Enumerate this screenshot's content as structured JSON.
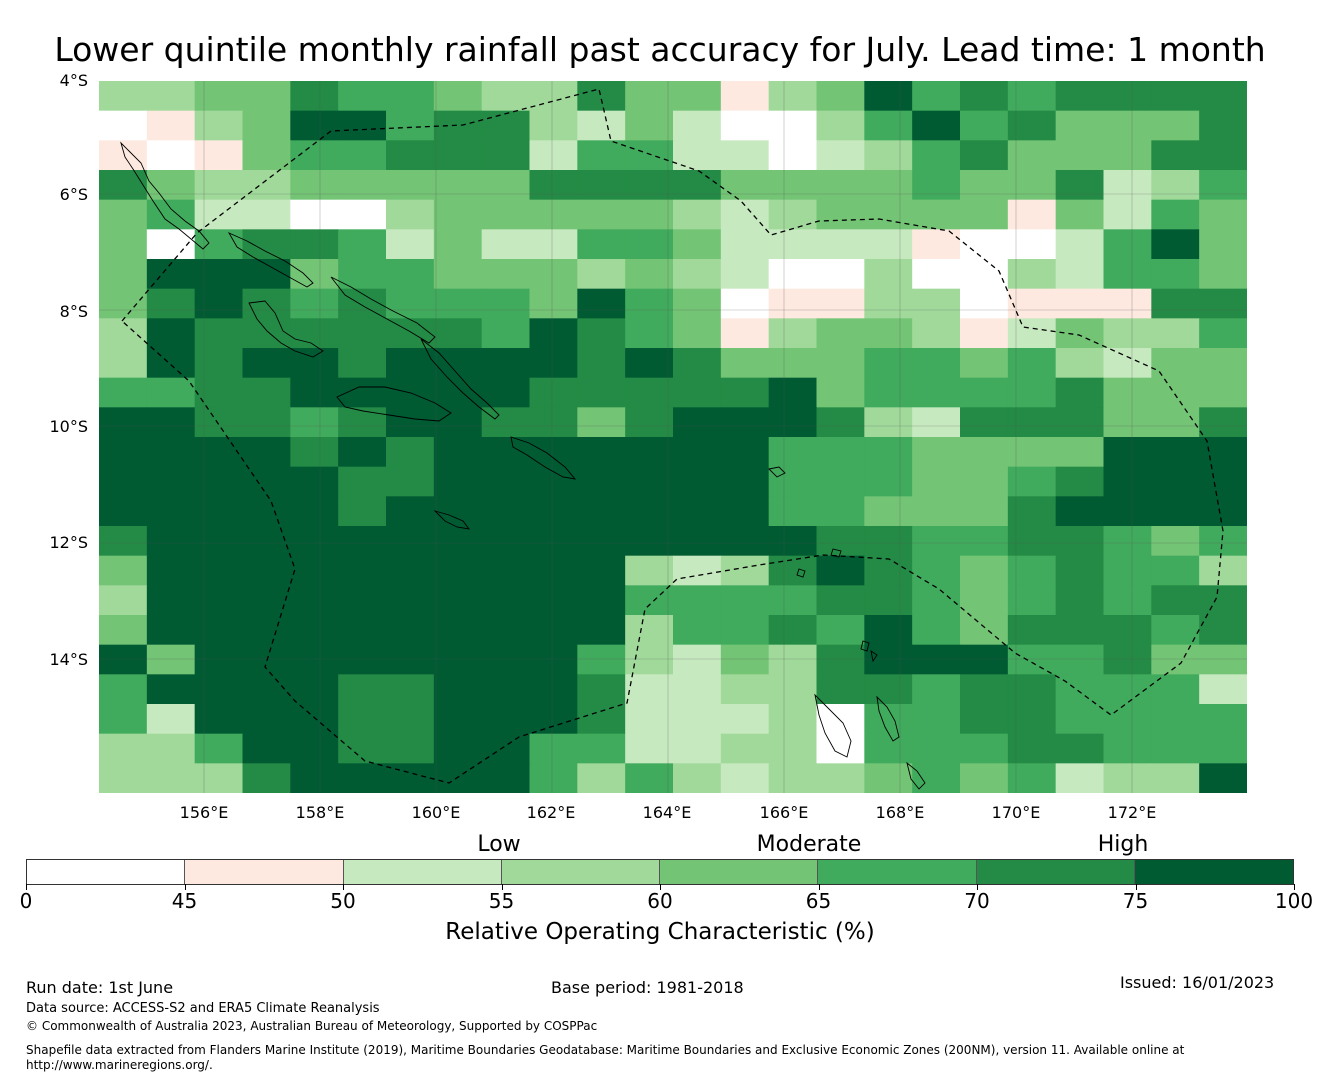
{
  "title": "Lower quintile monthly rainfall past accuracy for July. Lead time: 1 month",
  "map": {
    "lat_labels": [
      "4°S",
      "6°S",
      "8°S",
      "10°S",
      "12°S",
      "14°S"
    ],
    "lon_labels": [
      "156°E",
      "158°E",
      "160°E",
      "162°E",
      "164°E",
      "166°E",
      "168°E",
      "170°E",
      "172°E"
    ],
    "roc_grid_bins": [
      [
        3,
        3,
        4,
        4,
        6,
        5,
        5,
        4,
        3,
        3,
        6,
        4,
        4,
        1,
        3,
        4,
        7,
        5,
        6,
        5,
        6,
        6,
        6,
        6
      ],
      [
        0,
        1,
        3,
        4,
        7,
        7,
        5,
        6,
        6,
        3,
        2,
        4,
        2,
        0,
        0,
        3,
        5,
        7,
        5,
        6,
        4,
        4,
        4,
        6
      ],
      [
        1,
        0,
        1,
        4,
        5,
        5,
        6,
        6,
        6,
        2,
        5,
        5,
        2,
        2,
        0,
        2,
        3,
        5,
        6,
        4,
        4,
        4,
        6,
        6
      ],
      [
        6,
        4,
        3,
        3,
        4,
        4,
        4,
        4,
        4,
        6,
        6,
        6,
        6,
        4,
        4,
        4,
        4,
        5,
        4,
        4,
        6,
        2,
        3,
        5
      ],
      [
        4,
        5,
        2,
        2,
        0,
        0,
        3,
        4,
        4,
        4,
        4,
        4,
        3,
        2,
        3,
        4,
        4,
        4,
        4,
        1,
        4,
        2,
        5,
        4
      ],
      [
        4,
        0,
        5,
        6,
        6,
        5,
        2,
        4,
        2,
        2,
        5,
        5,
        4,
        2,
        2,
        2,
        2,
        1,
        0,
        0,
        2,
        5,
        7,
        4
      ],
      [
        4,
        7,
        7,
        7,
        4,
        5,
        5,
        4,
        4,
        4,
        3,
        4,
        3,
        2,
        0,
        0,
        3,
        0,
        0,
        3,
        2,
        5,
        5,
        4
      ],
      [
        4,
        6,
        7,
        6,
        5,
        6,
        5,
        5,
        5,
        4,
        7,
        5,
        4,
        0,
        1,
        1,
        3,
        3,
        0,
        1,
        1,
        1,
        6,
        6
      ],
      [
        3,
        7,
        6,
        6,
        6,
        6,
        6,
        6,
        5,
        7,
        6,
        5,
        4,
        1,
        3,
        4,
        4,
        3,
        1,
        2,
        4,
        3,
        3,
        5
      ],
      [
        3,
        7,
        6,
        7,
        7,
        6,
        7,
        7,
        7,
        7,
        6,
        7,
        6,
        4,
        4,
        4,
        5,
        5,
        4,
        5,
        3,
        2,
        4,
        4
      ],
      [
        5,
        5,
        6,
        6,
        7,
        7,
        7,
        7,
        7,
        6,
        6,
        6,
        6,
        6,
        7,
        4,
        5,
        5,
        5,
        5,
        6,
        4,
        4,
        4
      ],
      [
        7,
        7,
        6,
        6,
        5,
        6,
        7,
        7,
        6,
        6,
        4,
        6,
        7,
        7,
        7,
        6,
        3,
        2,
        6,
        6,
        6,
        4,
        4,
        6
      ],
      [
        7,
        7,
        7,
        7,
        6,
        7,
        6,
        7,
        7,
        7,
        7,
        7,
        7,
        7,
        5,
        5,
        5,
        4,
        4,
        4,
        4,
        7,
        7,
        7
      ],
      [
        7,
        7,
        7,
        7,
        7,
        6,
        6,
        7,
        7,
        7,
        7,
        7,
        7,
        7,
        5,
        5,
        5,
        4,
        4,
        5,
        6,
        7,
        7,
        7
      ],
      [
        7,
        7,
        7,
        7,
        7,
        6,
        7,
        7,
        7,
        7,
        7,
        7,
        7,
        7,
        5,
        5,
        4,
        4,
        4,
        6,
        7,
        7,
        7,
        7
      ],
      [
        6,
        7,
        7,
        7,
        7,
        7,
        7,
        7,
        7,
        7,
        7,
        7,
        7,
        7,
        7,
        6,
        6,
        5,
        5,
        6,
        6,
        5,
        4,
        5
      ],
      [
        4,
        7,
        7,
        7,
        7,
        7,
        7,
        7,
        7,
        7,
        7,
        3,
        2,
        3,
        6,
        7,
        6,
        5,
        4,
        5,
        6,
        5,
        5,
        3
      ],
      [
        3,
        7,
        7,
        7,
        7,
        7,
        7,
        7,
        7,
        7,
        7,
        5,
        5,
        5,
        5,
        6,
        6,
        5,
        4,
        5,
        6,
        5,
        6,
        6
      ],
      [
        4,
        7,
        7,
        7,
        7,
        7,
        7,
        7,
        7,
        7,
        7,
        3,
        5,
        5,
        6,
        5,
        7,
        5,
        4,
        6,
        6,
        6,
        5,
        6
      ],
      [
        7,
        4,
        7,
        7,
        7,
        7,
        7,
        7,
        7,
        7,
        5,
        3,
        2,
        4,
        3,
        6,
        7,
        7,
        7,
        5,
        5,
        6,
        4,
        4
      ],
      [
        5,
        7,
        7,
        7,
        7,
        6,
        6,
        7,
        7,
        7,
        6,
        2,
        2,
        3,
        3,
        6,
        6,
        5,
        6,
        6,
        5,
        5,
        5,
        2
      ],
      [
        5,
        2,
        7,
        7,
        7,
        6,
        6,
        7,
        7,
        7,
        6,
        2,
        2,
        2,
        3,
        0,
        5,
        5,
        6,
        6,
        5,
        5,
        5,
        5
      ],
      [
        3,
        3,
        5,
        7,
        7,
        6,
        6,
        7,
        7,
        5,
        5,
        2,
        2,
        3,
        3,
        0,
        5,
        5,
        5,
        6,
        6,
        5,
        5,
        5
      ],
      [
        3,
        3,
        3,
        6,
        7,
        7,
        7,
        7,
        7,
        5,
        3,
        5,
        3,
        2,
        3,
        3,
        4,
        5,
        4,
        5,
        2,
        3,
        3,
        7
      ]
    ]
  },
  "colorbar": {
    "category_labels": [
      "Low",
      "Moderate",
      "High"
    ],
    "tick_labels": [
      "0",
      "45",
      "50",
      "55",
      "60",
      "65",
      "70",
      "75",
      "100"
    ],
    "bounds": [
      0,
      45,
      50,
      55,
      60,
      65,
      70,
      75,
      100
    ],
    "colors": [
      "#ffffff",
      "#fde9e0",
      "#c7e9c0",
      "#a1d99b",
      "#74c476",
      "#41ab5d",
      "#238b45",
      "#005a32"
    ],
    "title": "Relative Operating Characteristic (%)"
  },
  "footer": {
    "run_date": "Run date: 1st June",
    "base_period": "Base period: 1981-2018",
    "issued": "Issued: 16/01/2023",
    "data_source": "Data source: ACCESS-S2 and ERA5 Climate Reanalysis",
    "copyright": "© Commonwealth of Australia 2023, Australian Bureau of Meteorology, Supported by COSPPac",
    "shapefile_line1": "Shapefile data extracted from Flanders Marine Institute (2019), Maritime Boundaries Geodatabase: Maritime Boundaries and Exclusive Economic Zones (200NM), version 11. Available online at",
    "shapefile_line2": "http://www.marineregions.org/."
  }
}
